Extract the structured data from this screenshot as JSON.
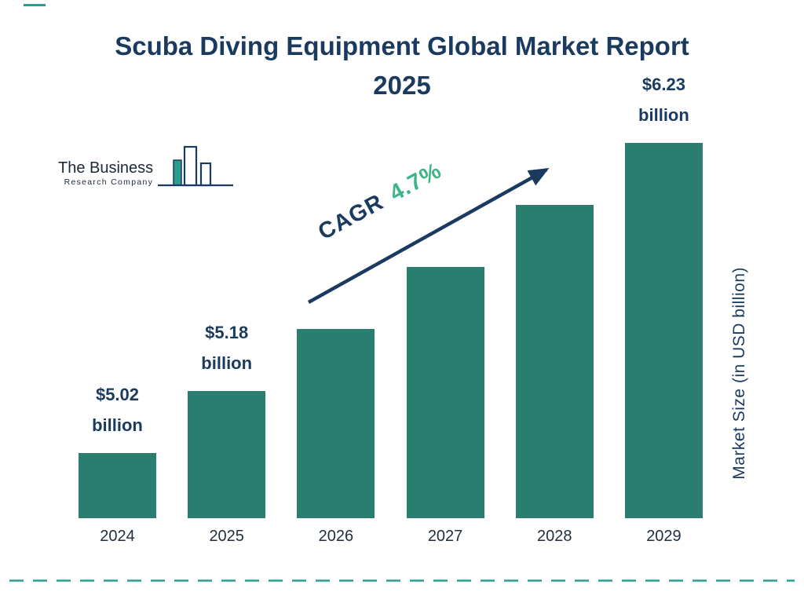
{
  "page": {
    "title": "Scuba Diving Equipment Global Market Report 2025"
  },
  "logo": {
    "name_line1": "The Business",
    "name_line2": "Research Company"
  },
  "annotation": {
    "cagr_label": "CAGR",
    "cagr_value": "4.7%"
  },
  "axis": {
    "y_right_label": "Market Size (in USD billion)"
  },
  "chart_data": {
    "type": "bar",
    "title": "Scuba Diving Equipment Global Market Report 2025",
    "categories": [
      "2024",
      "2025",
      "2026",
      "2027",
      "2028",
      "2029"
    ],
    "values": [
      5.02,
      5.18,
      5.42,
      5.68,
      5.95,
      6.23
    ],
    "unit": "USD billion",
    "ylabel": "Market Size (in USD billion)",
    "value_labels": [
      {
        "index": 0,
        "amount": "$5.02",
        "unit": "billion"
      },
      {
        "index": 1,
        "amount": "$5.18",
        "unit": "billion"
      },
      {
        "index": 5,
        "amount": "$6.23",
        "unit": "billion"
      }
    ],
    "cagr": "4.7%",
    "legend": "none",
    "grid": false
  },
  "colors": {
    "bar": "#297e6f",
    "navy": "#1a3a5f",
    "green": "#3fb487",
    "dash": "#2a9d8f"
  }
}
